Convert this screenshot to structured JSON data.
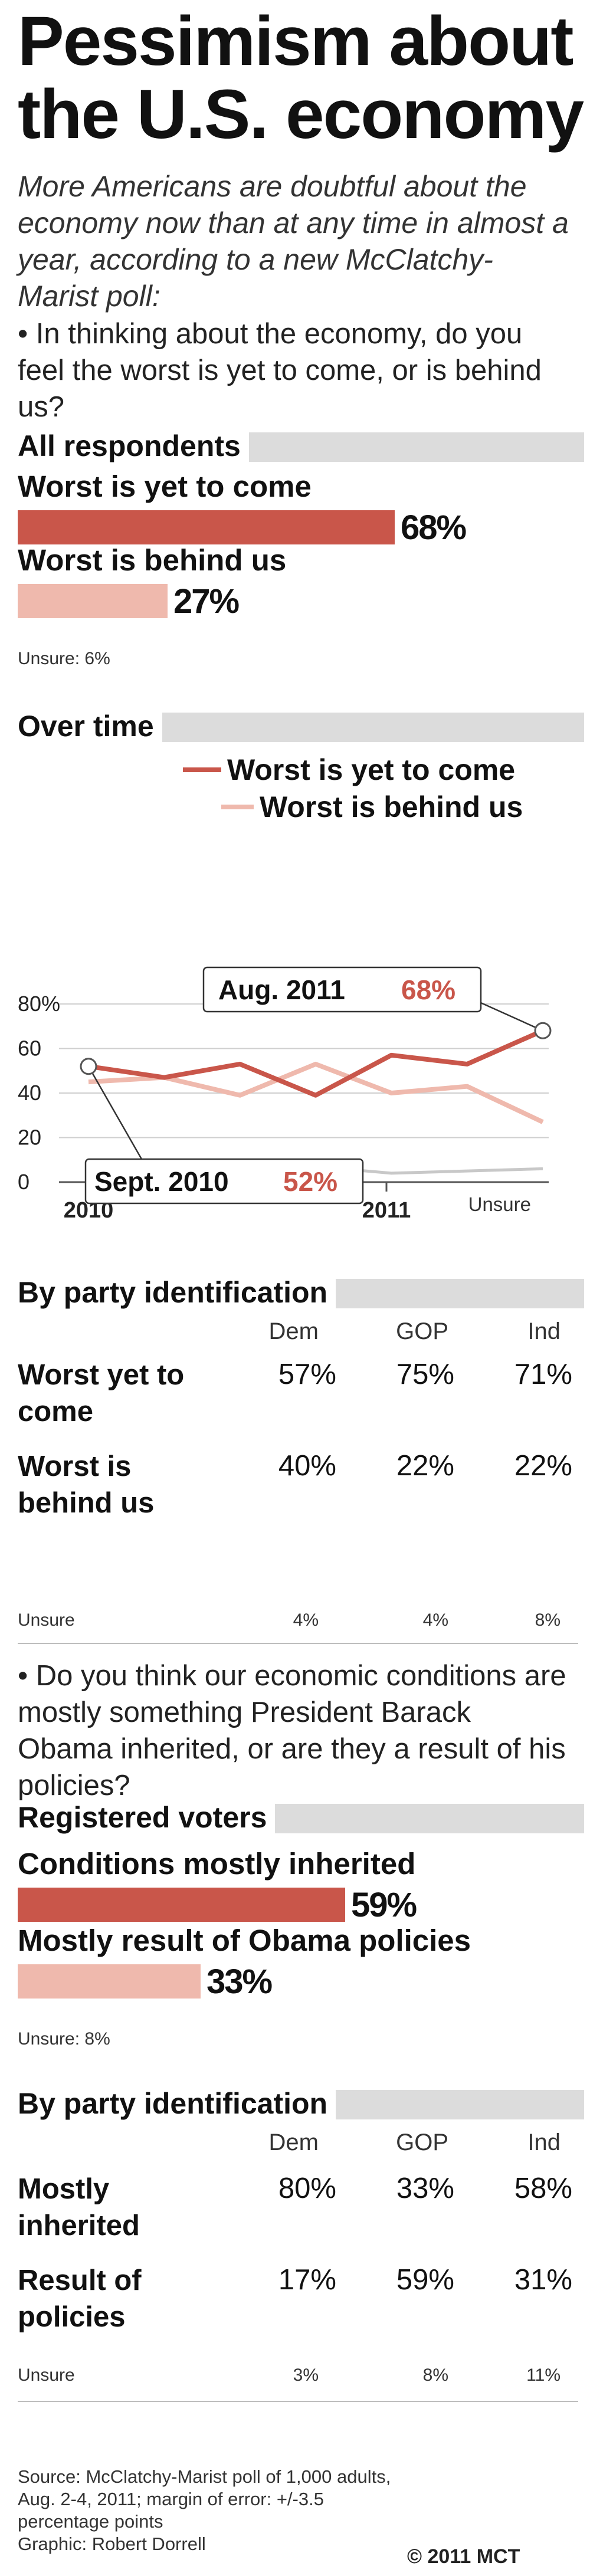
{
  "title_lines": [
    "Pessimism about",
    "the U.S. economy"
  ],
  "intro": "More Americans are doubtful about the economy now than at any time in almost a year, according to a new McClatchy-Marist poll:",
  "question1": "• In thinking about the economy, do you feel the worst is yet to come, or is behind us?",
  "section_all": "All respondents",
  "all": {
    "worst_label": "Worst is yet to come",
    "worst_value": "68%",
    "behind_label": "Worst is behind us",
    "behind_value": "27%",
    "unsure": "Unsure: 6%"
  },
  "section_overtime": "Over time",
  "section_party": "By party identification",
  "party_headers": [
    "Dem",
    "GOP",
    "Ind"
  ],
  "party1": {
    "row1_label": "Worst yet to come",
    "row1": [
      "57%",
      "75%",
      "71%"
    ],
    "row2_label": "Worst is behind us",
    "row2": [
      "40%",
      "22%",
      "22%"
    ],
    "unsure_label": "Unsure",
    "unsure": [
      "4%",
      "4%",
      "8%"
    ]
  },
  "question2": "• Do you think our economic conditions are mostly something President Barack Obama inherited, or are they a result of his policies?",
  "section_registered": "Registered voters",
  "reg": {
    "inherited_label": "Conditions mostly inherited",
    "inherited_value": "59%",
    "policies_label": "Mostly result of Obama policies",
    "policies_value": "33%",
    "unsure": "Unsure: 8%"
  },
  "party2": {
    "row1_label": "Mostly inherited",
    "row1": [
      "80%",
      "33%",
      "58%"
    ],
    "row2_label": "Result of policies",
    "row2": [
      "17%",
      "59%",
      "31%"
    ],
    "unsure_label": "Unsure",
    "unsure": [
      "3%",
      "8%",
      "11%"
    ]
  },
  "source_lines": [
    "Source: McClatchy-Marist poll of 1,000 adults,",
    "Aug. 2-4, 2011; margin of error: +/-3.5",
    "percentage points",
    "Graphic: Robert Dorrell"
  ],
  "credit": "© 2011 MCT",
  "colors": {
    "worst": "#c9564a",
    "behind": "#efb9ad",
    "unsure": "#c8c8c8",
    "header_bar": "#dcdcdc"
  },
  "chart_data": [
    {
      "type": "bar",
      "categories": [
        "Worst is yet to come",
        "Worst is behind us"
      ],
      "values": [
        68,
        27
      ],
      "xlim": [
        0,
        100
      ]
    },
    {
      "type": "line",
      "x": [
        "2010-09",
        "2010-11",
        "2011-01",
        "2011-03",
        "2011-04",
        "2011-06",
        "2011-08"
      ],
      "x_tick_labels": [
        "2010",
        "2011"
      ],
      "y_ticks": [
        "80%",
        "60",
        "40",
        "20",
        "0"
      ],
      "ylim": [
        0,
        80
      ],
      "series": [
        {
          "name": "Worst is yet to come",
          "values": [
            52,
            47,
            53,
            39,
            57,
            53,
            68
          ]
        },
        {
          "name": "Worst is behind us",
          "values": [
            45,
            47,
            39,
            53,
            40,
            43,
            27
          ]
        },
        {
          "name": "Unsure",
          "values": [
            3,
            5,
            6,
            7,
            4,
            5,
            6
          ]
        }
      ],
      "annotations": [
        {
          "label": "Aug. 2011",
          "value": "68%"
        },
        {
          "label": "Sept. 2010",
          "value": "52%"
        }
      ]
    },
    {
      "type": "bar",
      "categories": [
        "Conditions mostly inherited",
        "Mostly result of Obama policies"
      ],
      "values": [
        59,
        33
      ],
      "xlim": [
        0,
        100
      ]
    }
  ]
}
